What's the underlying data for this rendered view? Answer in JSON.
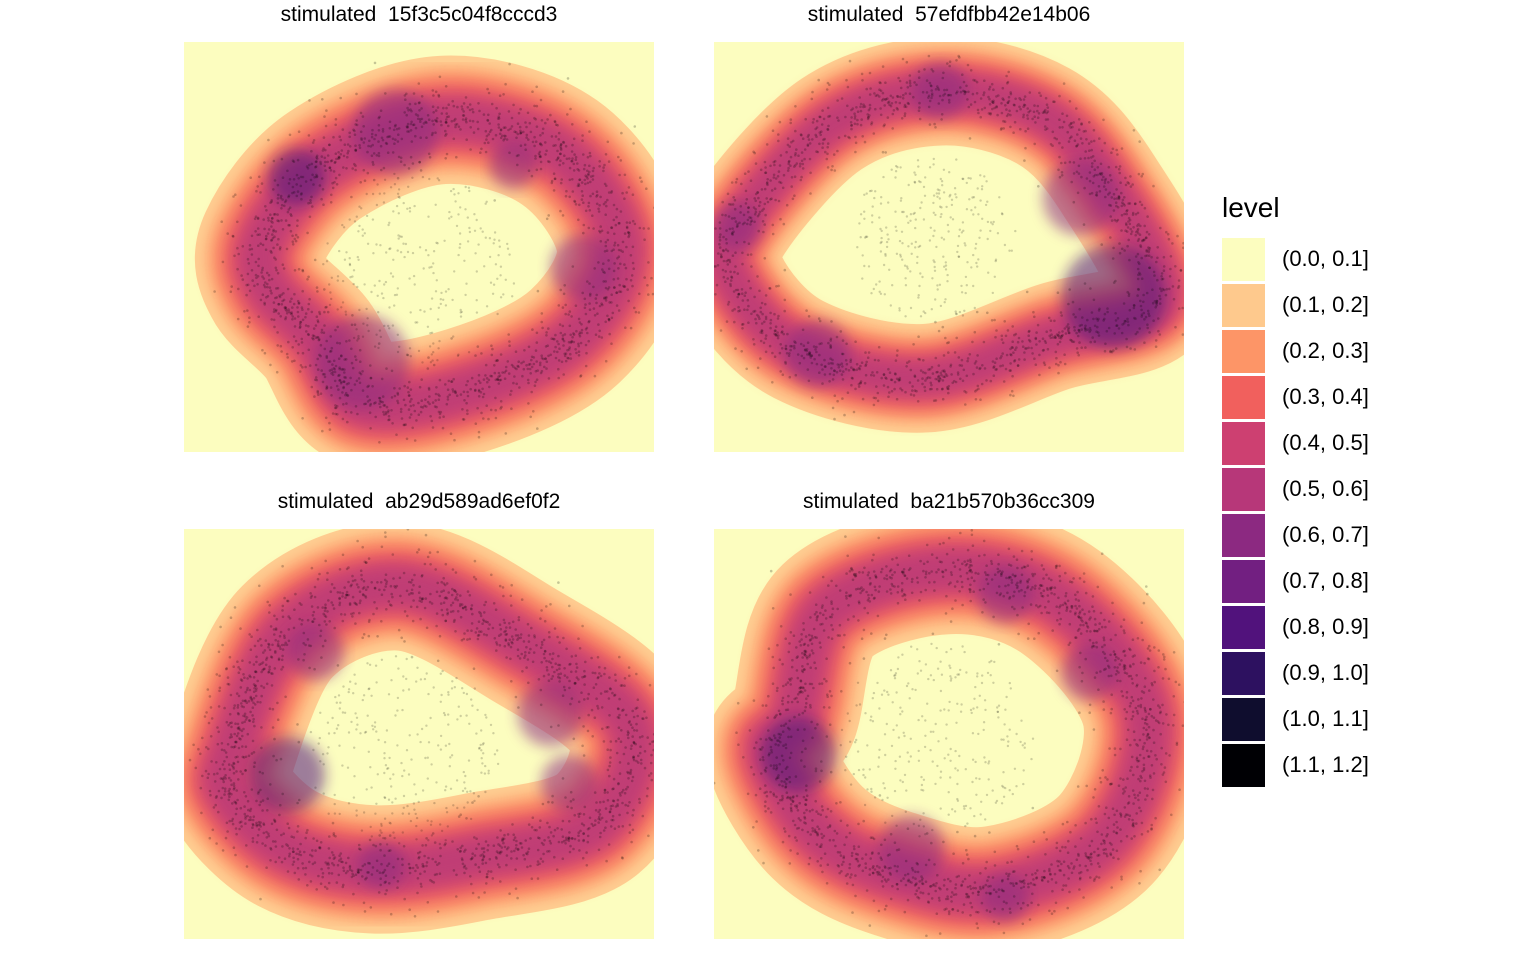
{
  "chart_data": {
    "type": "density-contour-with-points",
    "panels": [
      {
        "title": "stimulated  15f3c5c04f8cccd3",
        "shape": [
          [
            0.17,
            0.48
          ],
          [
            0.3,
            0.3
          ],
          [
            0.55,
            0.19
          ],
          [
            0.8,
            0.27
          ],
          [
            0.93,
            0.5
          ],
          [
            0.83,
            0.72
          ],
          [
            0.6,
            0.85
          ],
          [
            0.38,
            0.88
          ],
          [
            0.28,
            0.72
          ],
          [
            0.18,
            0.6
          ]
        ],
        "ring_width": 0.13,
        "hot": [
          [
            0.24,
            0.33,
            0.06
          ],
          [
            0.45,
            0.22,
            0.09
          ],
          [
            0.38,
            0.78,
            0.1
          ],
          [
            0.85,
            0.55,
            0.07
          ],
          [
            0.7,
            0.3,
            0.05
          ]
        ]
      },
      {
        "title": "stimulated  57efdfbb42e14b06",
        "shape": [
          [
            0.05,
            0.45
          ],
          [
            0.25,
            0.2
          ],
          [
            0.48,
            0.12
          ],
          [
            0.7,
            0.18
          ],
          [
            0.84,
            0.35
          ],
          [
            0.95,
            0.63
          ],
          [
            0.72,
            0.72
          ],
          [
            0.45,
            0.82
          ],
          [
            0.18,
            0.75
          ],
          [
            0.04,
            0.58
          ]
        ],
        "ring_width": 0.11,
        "hot": [
          [
            0.85,
            0.62,
            0.11
          ],
          [
            0.78,
            0.38,
            0.08
          ],
          [
            0.48,
            0.12,
            0.06
          ],
          [
            0.22,
            0.76,
            0.07
          ],
          [
            0.05,
            0.45,
            0.05
          ]
        ]
      },
      {
        "title": "stimulated  ab29d589ad6ef0f2",
        "shape": [
          [
            0.1,
            0.55
          ],
          [
            0.22,
            0.25
          ],
          [
            0.46,
            0.14
          ],
          [
            0.72,
            0.28
          ],
          [
            0.95,
            0.48
          ],
          [
            0.88,
            0.72
          ],
          [
            0.62,
            0.8
          ],
          [
            0.4,
            0.83
          ],
          [
            0.22,
            0.78
          ],
          [
            0.1,
            0.65
          ]
        ],
        "ring_width": 0.13,
        "hot": [
          [
            0.22,
            0.6,
            0.08
          ],
          [
            0.28,
            0.3,
            0.06
          ],
          [
            0.78,
            0.45,
            0.07
          ],
          [
            0.82,
            0.62,
            0.06
          ],
          [
            0.42,
            0.82,
            0.05
          ]
        ]
      },
      {
        "title": "stimulated  ba21b570b36cc309",
        "shape": [
          [
            0.17,
            0.46
          ],
          [
            0.24,
            0.2
          ],
          [
            0.5,
            0.1
          ],
          [
            0.74,
            0.18
          ],
          [
            0.92,
            0.45
          ],
          [
            0.84,
            0.75
          ],
          [
            0.6,
            0.88
          ],
          [
            0.38,
            0.84
          ],
          [
            0.22,
            0.74
          ],
          [
            0.12,
            0.55
          ]
        ],
        "ring_width": 0.13,
        "hot": [
          [
            0.18,
            0.55,
            0.08
          ],
          [
            0.42,
            0.78,
            0.07
          ],
          [
            0.62,
            0.16,
            0.06
          ],
          [
            0.8,
            0.35,
            0.06
          ],
          [
            0.62,
            0.9,
            0.05
          ]
        ]
      }
    ],
    "legend_title": "level",
    "legend": [
      {
        "label": "(0.0, 0.1]",
        "color": "#FCFDBF"
      },
      {
        "label": "(0.1, 0.2]",
        "color": "#FEC98D"
      },
      {
        "label": "(0.2, 0.3]",
        "color": "#FD9567"
      },
      {
        "label": "(0.3, 0.4]",
        "color": "#F1605D"
      },
      {
        "label": "(0.4, 0.5]",
        "color": "#CD4071"
      },
      {
        "label": "(0.5, 0.6]",
        "color": "#B73779"
      },
      {
        "label": "(0.6, 0.7]",
        "color": "#8C2981"
      },
      {
        "label": "(0.7, 0.8]",
        "color": "#721F81"
      },
      {
        "label": "(0.8, 0.9]",
        "color": "#51127C"
      },
      {
        "label": "(0.9, 1.0]",
        "color": "#2D1160"
      },
      {
        "label": "(1.0, 1.1]",
        "color": "#0F0D2E"
      },
      {
        "label": "(1.1, 1.2]",
        "color": "#000004"
      }
    ]
  }
}
